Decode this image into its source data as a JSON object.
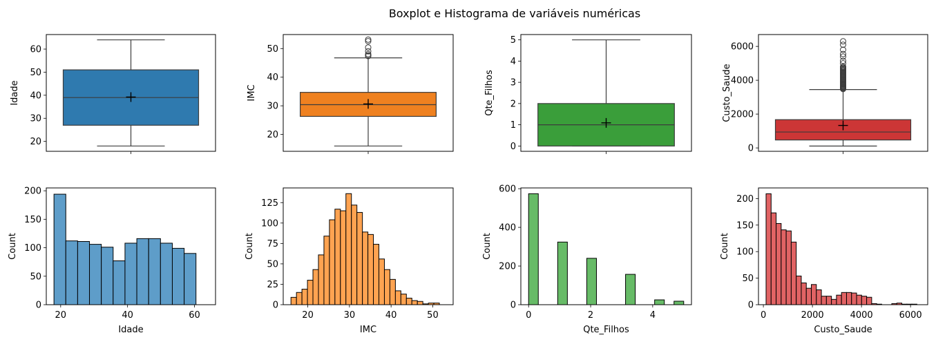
{
  "figure": {
    "suptitle": "Boxplot e Histograma de variáveis numéricas"
  },
  "chart_data": [
    {
      "type": "box",
      "variable": "Idade",
      "ylabel": "Idade",
      "color": "#1f77b4",
      "ylim": [
        15.7,
        66.3
      ],
      "yticks": [
        20,
        30,
        40,
        50,
        60
      ],
      "stats": {
        "whisker_low": 18,
        "q1": 27,
        "median": 39,
        "q3": 51,
        "whisker_high": 64,
        "mean": 39.2
      },
      "outliers": []
    },
    {
      "type": "box",
      "variable": "IMC",
      "ylabel": "IMC",
      "color": "#ff7f0e",
      "ylim": [
        14.1,
        54.9
      ],
      "yticks": [
        20,
        30,
        40,
        50
      ],
      "stats": {
        "whisker_low": 15.96,
        "q1": 26.3,
        "median": 30.4,
        "q3": 34.7,
        "whisker_high": 46.75,
        "mean": 30.66
      },
      "outliers": [
        47.4,
        47.5,
        47.6,
        48.07,
        49.06,
        50.38,
        52.58,
        53.13
      ]
    },
    {
      "type": "box",
      "variable": "Qte_Filhos",
      "ylabel": "Qte_Filhos",
      "color": "#2ca02c",
      "ylim": [
        -0.25,
        5.25
      ],
      "yticks": [
        0,
        1,
        2,
        3,
        4,
        5
      ],
      "stats": {
        "whisker_low": 0,
        "q1": 0,
        "median": 1,
        "q3": 2,
        "whisker_high": 5,
        "mean": 1.09
      },
      "outliers": []
    },
    {
      "type": "box",
      "variable": "Custo_Saude",
      "ylabel": "Custo_Saude",
      "color": "#d62728",
      "ylim": [
        -200,
        6700
      ],
      "yticks": [
        0,
        2000,
        4000,
        6000
      ],
      "stats": {
        "whisker_low": 110,
        "q1": 470,
        "median": 940,
        "q3": 1670,
        "whisker_high": 3450,
        "mean": 1330
      },
      "outliers": [
        3480,
        3520,
        3560,
        3600,
        3640,
        3680,
        3720,
        3760,
        3800,
        3850,
        3900,
        3950,
        4000,
        4050,
        4100,
        4150,
        4200,
        4250,
        4300,
        4350,
        4400,
        4450,
        4500,
        4550,
        4600,
        4650,
        4700,
        4750,
        4800,
        5000,
        5150,
        5400,
        5550,
        5800,
        6100,
        6300
      ]
    },
    {
      "type": "histogram",
      "variable": "Idade",
      "xlabel": "Idade",
      "ylabel": "Count",
      "color": "#1f77b4",
      "xlim": [
        15.7,
        66.3
      ],
      "ylim": [
        0,
        205
      ],
      "xticks": [
        20,
        40,
        60
      ],
      "yticks": [
        0,
        50,
        100,
        150,
        200
      ],
      "bin_start": 18,
      "bin_width": 3.5385,
      "counts": [
        194,
        112,
        111,
        106,
        101,
        77,
        108,
        116,
        116,
        108,
        99,
        90
      ]
    },
    {
      "type": "histogram",
      "variable": "IMC",
      "xlabel": "IMC",
      "ylabel": "Count",
      "color": "#ff7f0e",
      "xlim": [
        14.1,
        54.9
      ],
      "ylim": [
        0,
        143
      ],
      "xticks": [
        20,
        30,
        40,
        50
      ],
      "yticks": [
        0,
        25,
        50,
        75,
        100,
        125
      ],
      "bin_start": 15.96,
      "bin_width": 1.3196,
      "counts": [
        9,
        15,
        19,
        30,
        43,
        61,
        84,
        104,
        117,
        115,
        136,
        122,
        113,
        89,
        86,
        74,
        56,
        43,
        31,
        17,
        13,
        8,
        5,
        4,
        1,
        2,
        2
      ]
    },
    {
      "type": "histogram",
      "variable": "Qte_Filhos",
      "xlabel": "Qte_Filhos",
      "ylabel": "Count",
      "color": "#2ca02c",
      "xlim": [
        -0.25,
        5.25
      ],
      "ylim": [
        0,
        604
      ],
      "xticks": [
        0,
        2,
        4
      ],
      "yticks": [
        0,
        200,
        400,
        600
      ],
      "bin_start": 0,
      "bin_width": 0.3125,
      "counts": [
        574,
        0,
        0,
        324,
        0,
        0,
        240,
        0,
        0,
        0,
        157,
        0,
        0,
        25,
        0,
        18
      ]
    },
    {
      "type": "histogram",
      "variable": "Custo_Saude",
      "xlabel": "Custo_Saude",
      "ylabel": "Count",
      "color": "#d62728",
      "xlim": [
        -200,
        6700
      ],
      "ylim": [
        0,
        220
      ],
      "xticks": [
        0,
        2000,
        4000,
        6000
      ],
      "yticks": [
        0,
        50,
        100,
        150,
        200
      ],
      "bin_start": 110,
      "bin_width": 205,
      "counts": [
        209,
        173,
        153,
        141,
        139,
        118,
        54,
        41,
        31,
        38,
        28,
        16,
        16,
        10,
        18,
        23,
        23,
        22,
        18,
        16,
        14,
        2,
        1,
        0,
        0,
        2,
        3,
        1,
        1,
        1
      ]
    }
  ]
}
